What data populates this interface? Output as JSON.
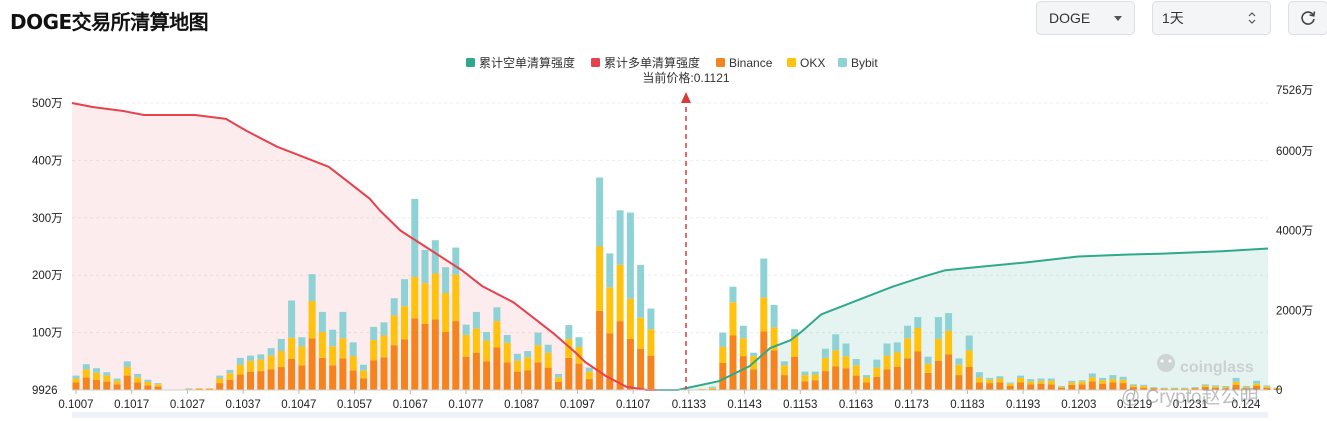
{
  "header": {
    "title": "DOGE交易所清算地图",
    "symbol_value": "DOGE",
    "range_value": "1天"
  },
  "watermark": {
    "logo_text": "coinglass",
    "credit_text": "@ Crypto赵公明"
  },
  "colors": {
    "short_cumulative": "#2fa88c",
    "long_cumulative": "#e5424d",
    "binance": "#f5841f",
    "okx": "#ffc20e",
    "bybit": "#8fd2d6",
    "price_marker": "#d93b3b"
  },
  "chart_data": {
    "type": "bar",
    "title": "",
    "current_price_label": "当前价格:0.1121",
    "current_price": 0.1121,
    "legend": [
      "累计空单清算强度",
      "累计多单清算强度",
      "Binance",
      "OKX",
      "Bybit"
    ],
    "y_left_ticks": [
      "500万",
      "400万",
      "300万",
      "200万",
      "100万",
      "9926"
    ],
    "y_left_tick_values": [
      5000000,
      4000000,
      3000000,
      2000000,
      1000000,
      9926
    ],
    "y_right_ticks": [
      "7526万",
      "6000万",
      "4000万",
      "2000万",
      "0"
    ],
    "y_right_tick_values": [
      75260000,
      60000000,
      40000000,
      20000000,
      0
    ],
    "y_left_range": [
      9926,
      5000000
    ],
    "y_right_range": [
      0,
      75260000
    ],
    "x_tick_labels": [
      "0.1007",
      "0.1017",
      "0.1027",
      "0.1037",
      "0.1047",
      "0.1057",
      "0.1067",
      "0.1077",
      "0.1087",
      "0.1097",
      "0.1107",
      "0.1133",
      "0.1143",
      "0.1153",
      "0.1163",
      "0.1173",
      "0.1183",
      "0.1193",
      "0.1203",
      "0.1219",
      "0.1231",
      "0.124"
    ],
    "price_range": [
      0.1007,
      0.124
    ],
    "bar_price_step": 0.0002,
    "series": [
      {
        "name": "Binance",
        "values": [
          130000,
          220000,
          180000,
          150000,
          100000,
          250000,
          130000,
          80000,
          60000,
          0,
          0,
          10000,
          20000,
          20000,
          120000,
          180000,
          270000,
          320000,
          330000,
          360000,
          400000,
          540000,
          430000,
          900000,
          560000,
          430000,
          550000,
          340000,
          200000,
          520000,
          570000,
          780000,
          880000,
          1250000,
          1150000,
          1230000,
          1010000,
          1200000,
          580000,
          650000,
          500000,
          740000,
          480000,
          320000,
          340000,
          480000,
          390000,
          140000,
          560000,
          460000,
          190000,
          1380000,
          990000,
          1200000,
          890000,
          720000,
          600000,
          0,
          0,
          0,
          0,
          10000,
          20000,
          470000,
          950000,
          590000,
          360000,
          1020000,
          690000,
          260000,
          580000,
          150000,
          170000,
          330000,
          410000,
          380000,
          250000,
          130000,
          230000,
          360000,
          400000,
          550000,
          670000,
          300000,
          510000,
          620000,
          260000,
          400000,
          130000,
          120000,
          130000,
          70000,
          130000,
          100000,
          110000,
          100000,
          40000,
          90000,
          100000,
          150000,
          110000,
          130000,
          120000,
          50000,
          40000,
          30000,
          20000,
          20000,
          20000,
          30000,
          50000,
          40000,
          30000,
          90000,
          30000,
          70000,
          40000,
          20000
        ]
      },
      {
        "name": "OKX",
        "values": [
          70000,
          140000,
          120000,
          100000,
          60000,
          150000,
          90000,
          60000,
          40000,
          0,
          0,
          10000,
          10000,
          10000,
          80000,
          110000,
          170000,
          190000,
          200000,
          240000,
          280000,
          370000,
          330000,
          650000,
          450000,
          330000,
          350000,
          250000,
          140000,
          350000,
          380000,
          520000,
          580000,
          720000,
          710000,
          800000,
          680000,
          810000,
          380000,
          420000,
          360000,
          460000,
          340000,
          190000,
          230000,
          300000,
          260000,
          80000,
          330000,
          290000,
          130000,
          1120000,
          800000,
          980000,
          700000,
          540000,
          460000,
          0,
          0,
          0,
          0,
          10000,
          20000,
          280000,
          580000,
          310000,
          230000,
          590000,
          400000,
          170000,
          360000,
          110000,
          100000,
          230000,
          280000,
          210000,
          180000,
          90000,
          160000,
          240000,
          260000,
          350000,
          410000,
          160000,
          380000,
          410000,
          180000,
          290000,
          90000,
          60000,
          70000,
          40000,
          80000,
          50000,
          50000,
          60000,
          20000,
          40000,
          50000,
          70000,
          60000,
          60000,
          60000,
          30000,
          30000,
          10000,
          10000,
          10000,
          10000,
          10000,
          30000,
          20000,
          20000,
          50000,
          20000,
          40000,
          20000,
          10000
        ]
      },
      {
        "name": "Bybit",
        "values": [
          50000,
          90000,
          80000,
          60000,
          40000,
          100000,
          60000,
          40000,
          20000,
          0,
          0,
          10000,
          0,
          0,
          50000,
          60000,
          120000,
          90000,
          90000,
          130000,
          210000,
          650000,
          160000,
          470000,
          350000,
          290000,
          460000,
          240000,
          100000,
          230000,
          230000,
          300000,
          470000,
          1360000,
          580000,
          580000,
          450000,
          470000,
          180000,
          290000,
          150000,
          240000,
          140000,
          120000,
          110000,
          220000,
          140000,
          60000,
          240000,
          170000,
          70000,
          1200000,
          590000,
          950000,
          1500000,
          920000,
          360000,
          0,
          0,
          0,
          0,
          0,
          20000,
          250000,
          270000,
          220000,
          60000,
          680000,
          390000,
          70000,
          120000,
          60000,
          50000,
          160000,
          280000,
          220000,
          110000,
          40000,
          140000,
          210000,
          170000,
          220000,
          190000,
          120000,
          380000,
          310000,
          110000,
          260000,
          90000,
          30000,
          40000,
          20000,
          40000,
          40000,
          40000,
          40000,
          10000,
          30000,
          20000,
          70000,
          40000,
          70000,
          50000,
          20000,
          20000,
          10000,
          10000,
          10000,
          10000,
          10000,
          20000,
          20000,
          20000,
          70000,
          20000,
          50000,
          20000,
          10000
        ]
      },
      {
        "name": "累计多单清算强度",
        "x": [
          0.1007,
          0.1011,
          0.1017,
          0.1021,
          0.1025,
          0.1031,
          0.1037,
          0.1041,
          0.1047,
          0.1051,
          0.1057,
          0.1061,
          0.1065,
          0.1067,
          0.1071,
          0.1077,
          0.1083,
          0.1087,
          0.1093,
          0.1097,
          0.1101,
          0.1105,
          0.1107,
          0.1111,
          0.1115,
          0.1119,
          0.1121
        ],
        "values": [
          72000000,
          71000000,
          70000000,
          69000000,
          69000000,
          69000000,
          68000000,
          65000000,
          61000000,
          59000000,
          56000000,
          52000000,
          48000000,
          45000000,
          40000000,
          35000000,
          30000000,
          26000000,
          22000000,
          18000000,
          14000000,
          9500000,
          7000000,
          3500000,
          800000,
          0,
          0
        ]
      },
      {
        "name": "累计空单清算强度",
        "x": [
          0.1121,
          0.1125,
          0.1133,
          0.1139,
          0.1143,
          0.1147,
          0.1149,
          0.1153,
          0.1157,
          0.1163,
          0.1167,
          0.1173,
          0.1177,
          0.1183,
          0.1193,
          0.1203,
          0.1213,
          0.1219,
          0.1231,
          0.124
        ],
        "values": [
          0,
          0,
          2200000,
          6000000,
          10500000,
          12500000,
          14500000,
          19000000,
          21000000,
          24000000,
          26000000,
          28500000,
          30000000,
          30800000,
          32000000,
          33500000,
          34000000,
          34200000,
          34800000,
          35500000
        ]
      }
    ]
  }
}
